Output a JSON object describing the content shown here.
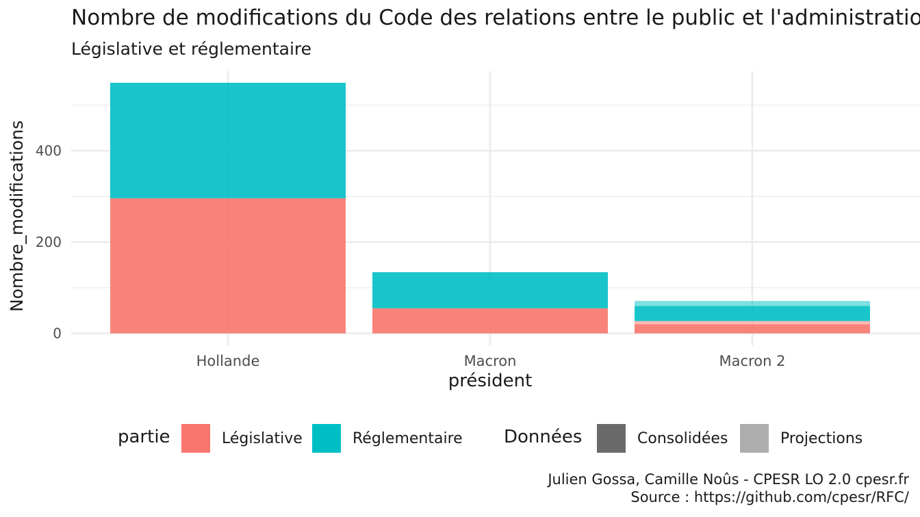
{
  "chart_data": {
    "type": "bar",
    "stacked": true,
    "title": "Nombre de modifications du Code des relations entre le public et l'administration",
    "subtitle": "Législative et réglementaire",
    "xlabel": "président",
    "ylabel": "Nombre_modifications",
    "categories": [
      "Hollande",
      "Macron",
      "Macron 2"
    ],
    "ylim": [
      0,
      575
    ],
    "yticks": [
      0,
      200,
      400
    ],
    "grid": true,
    "series": [
      {
        "name": "Législative",
        "donnees": "Consolidées",
        "values": [
          296,
          55,
          20
        ],
        "color": "#F8766D"
      },
      {
        "name": "Législative",
        "donnees": "Projections",
        "values": [
          0,
          0,
          7
        ],
        "color": "#F8766D"
      },
      {
        "name": "Réglementaire",
        "donnees": "Consolidées",
        "values": [
          253,
          79,
          33
        ],
        "color": "#00BFC4"
      },
      {
        "name": "Réglementaire",
        "donnees": "Projections",
        "values": [
          0,
          0,
          11
        ],
        "color": "#00BFC4"
      }
    ],
    "legend": {
      "placement": "bottom",
      "groups": [
        {
          "title": "partie",
          "items": [
            {
              "label": "Législative",
              "color": "#F8766D"
            },
            {
              "label": "Réglementaire",
              "color": "#00BFC4"
            }
          ]
        },
        {
          "title": "Données",
          "items": [
            {
              "label": "Consolidées",
              "color": "#6a6a6a"
            },
            {
              "label": "Projections",
              "color": "#adadad"
            }
          ]
        }
      ]
    },
    "caption": [
      "Julien Gossa, Camille Noûs - CPESR LO 2.0 cpesr.fr",
      "Source : https://github.com/cpesr/RFC/"
    ]
  }
}
